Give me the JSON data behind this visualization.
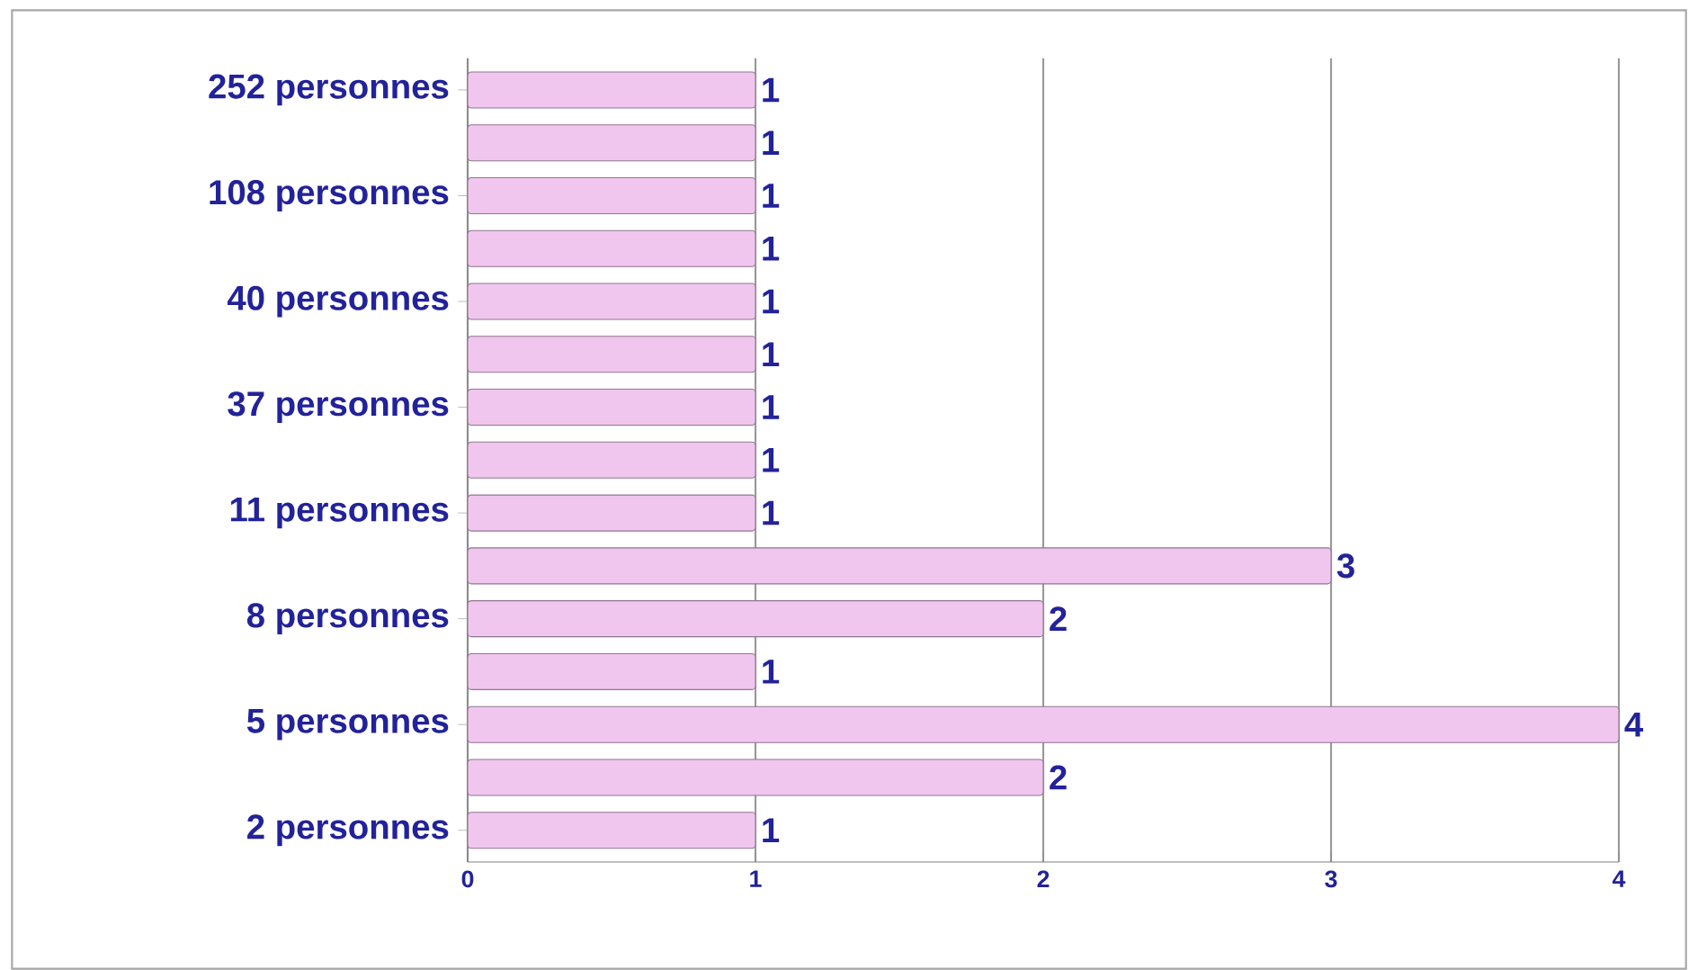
{
  "chart_data": {
    "type": "bar",
    "orientation": "horizontal",
    "categories": [
      "252 personnes",
      null,
      "108 personnes",
      null,
      "40 personnes",
      null,
      "37 personnes",
      null,
      "11 personnes",
      null,
      "8 personnes",
      null,
      "5 personnes",
      null,
      "2 personnes"
    ],
    "values": [
      1,
      1,
      1,
      1,
      1,
      1,
      1,
      1,
      1,
      3,
      2,
      1,
      4,
      2,
      1
    ],
    "color": "#f0c6ef",
    "xlim": [
      0,
      4
    ],
    "xticks": [
      0,
      1,
      2,
      3,
      4
    ],
    "grid": "x",
    "data_labels": true
  }
}
